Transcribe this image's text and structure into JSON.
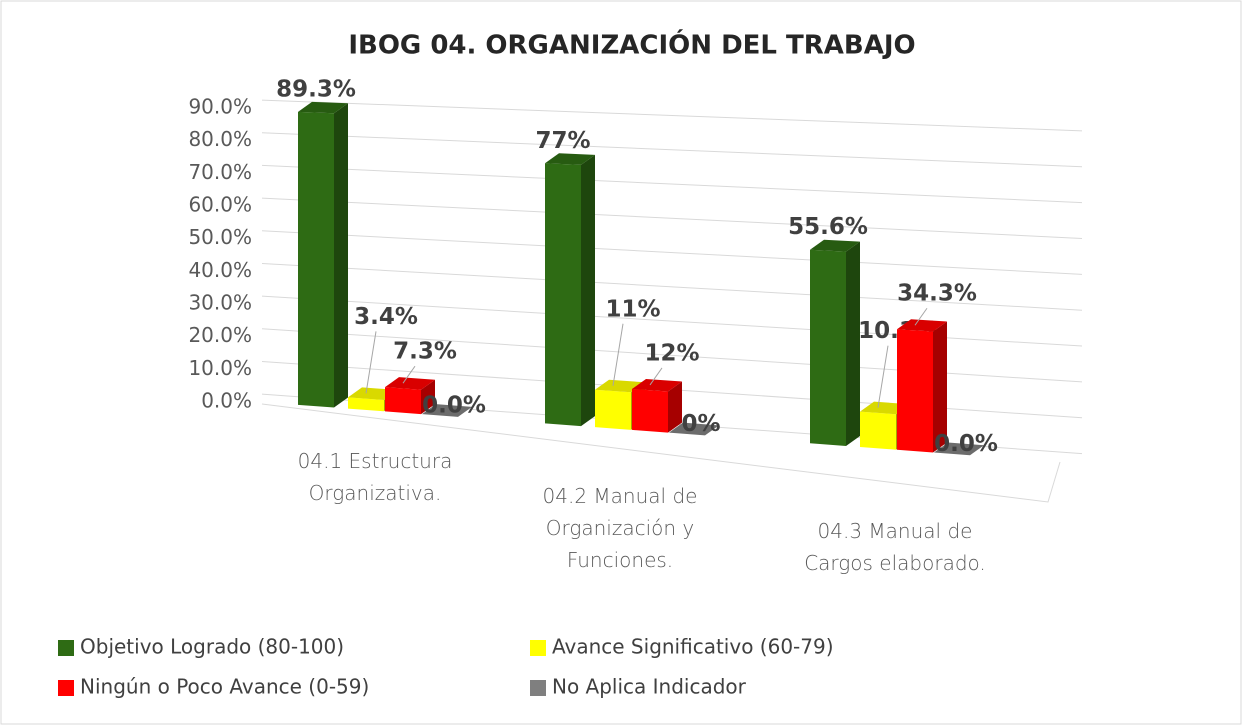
{
  "chart_data": {
    "type": "bar3d",
    "title": "IBOG 04. ORGANIZACIÓN DEL TRABAJO",
    "categories": [
      "04.1 Estructura Organizativa.",
      "04.2 Manual de Organización y Funciones.",
      "04.3 Manual de Cargos elaborado."
    ],
    "series": [
      {
        "name": "Objetivo Logrado (80-100)",
        "color": "#2e6b14",
        "values": [
          89.3,
          77,
          55.6
        ],
        "value_labels": [
          "89.3%",
          "77%",
          "55.6%"
        ]
      },
      {
        "name": "Avance Significativo (60-79)",
        "color": "#ffff00",
        "values": [
          3.4,
          11,
          10.1
        ],
        "value_labels": [
          "3.4%",
          "11%",
          "10.1%"
        ]
      },
      {
        "name": "Ningún o Poco Avance (0-59)",
        "color": "#ff0000",
        "values": [
          7.3,
          12,
          34.3
        ],
        "value_labels": [
          "7.3%",
          "12%",
          "34.3%"
        ]
      },
      {
        "name": "No Aplica Indicador",
        "color": "#7f7f7f",
        "values": [
          0,
          0,
          0
        ],
        "value_labels": [
          "0.0%",
          "0%",
          "0.0%"
        ]
      }
    ],
    "ylim": [
      0,
      90
    ],
    "yticks": [
      {
        "value": 0,
        "label": "0.0%"
      },
      {
        "value": 10,
        "label": "10.0%"
      },
      {
        "value": 20,
        "label": "20.0%"
      },
      {
        "value": 30,
        "label": "30.0%"
      },
      {
        "value": 40,
        "label": "40.0%"
      },
      {
        "value": 50,
        "label": "50.0%"
      },
      {
        "value": 60,
        "label": "60.0%"
      },
      {
        "value": 70,
        "label": "70.0%"
      },
      {
        "value": 80,
        "label": "80.0%"
      },
      {
        "value": 90,
        "label": "90.0%"
      }
    ],
    "grid": true,
    "legend": "bottom"
  }
}
